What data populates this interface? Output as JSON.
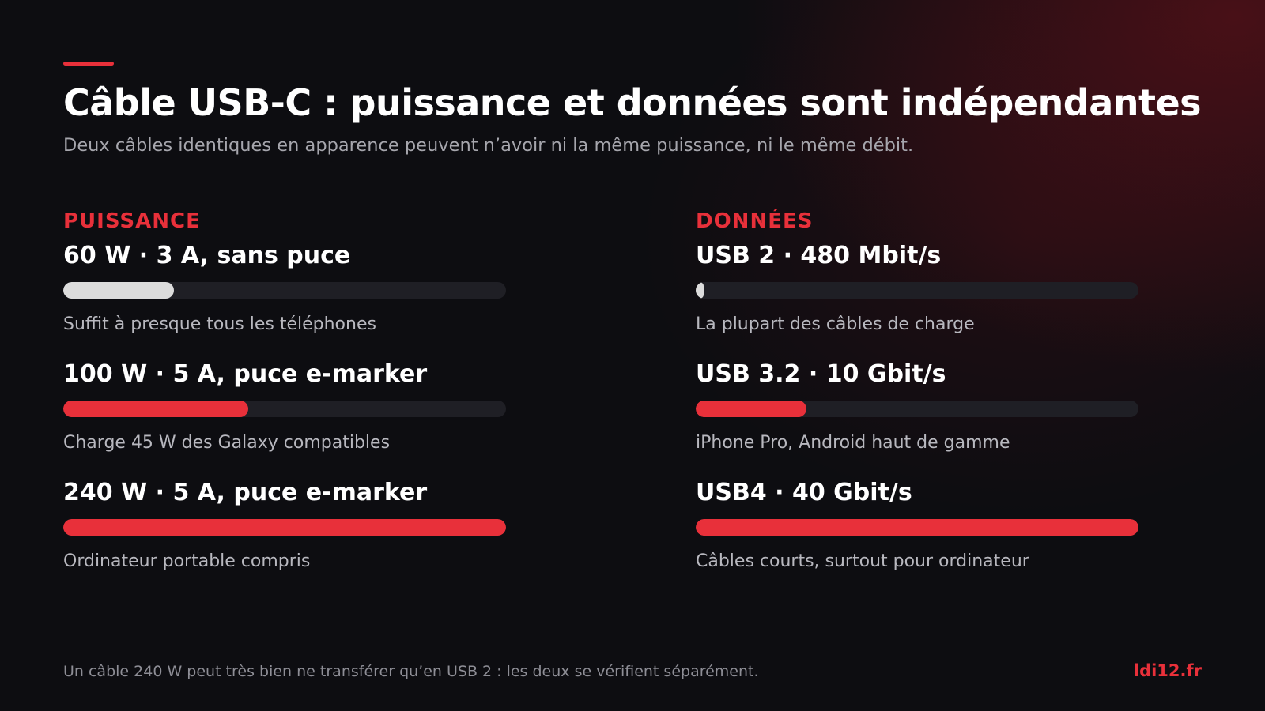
{
  "header": {
    "title": "Câble USB-C : puissance et données sont indépendantes",
    "subtitle": "Deux câbles identiques en apparence peuvent n’avoir ni la même puissance, ni le même débit."
  },
  "colors": {
    "accent": "#e8303a",
    "muted_bar": "#dcdcdc",
    "track": "#1f1f25",
    "background": "#0d0d11"
  },
  "columns": [
    {
      "heading": "PUISSANCE",
      "items": [
        {
          "label": "60 W · 3 A, sans puce",
          "note": "Suffit à presque tous les téléphones",
          "level": 0.25,
          "color": "#dcdcdc"
        },
        {
          "label": "100 W · 5 A, puce e-marker",
          "note": "Charge 45 W des Galaxy compatibles",
          "level": 0.417,
          "color": "#e8303a"
        },
        {
          "label": "240 W · 5 A, puce e-marker",
          "note": "Ordinateur portable compris",
          "level": 1.0,
          "color": "#e8303a"
        }
      ]
    },
    {
      "heading": "DONNÉES",
      "items": [
        {
          "label": "USB 2 · 480 Mbit/s",
          "note": "La plupart des câbles de charge",
          "level": 0.012,
          "color": "#dcdcdc"
        },
        {
          "label": "USB 3.2 · 10 Gbit/s",
          "note": "iPhone Pro, Android haut de gamme",
          "level": 0.25,
          "color": "#e8303a"
        },
        {
          "label": "USB4 · 40 Gbit/s",
          "note": "Câbles courts, surtout pour ordinateur",
          "level": 1.0,
          "color": "#e8303a"
        }
      ]
    }
  ],
  "footer": {
    "note": "Un câble 240 W peut très bien ne transférer qu’en USB 2 : les deux se vérifient séparément.",
    "brand": "ldi12.fr"
  }
}
